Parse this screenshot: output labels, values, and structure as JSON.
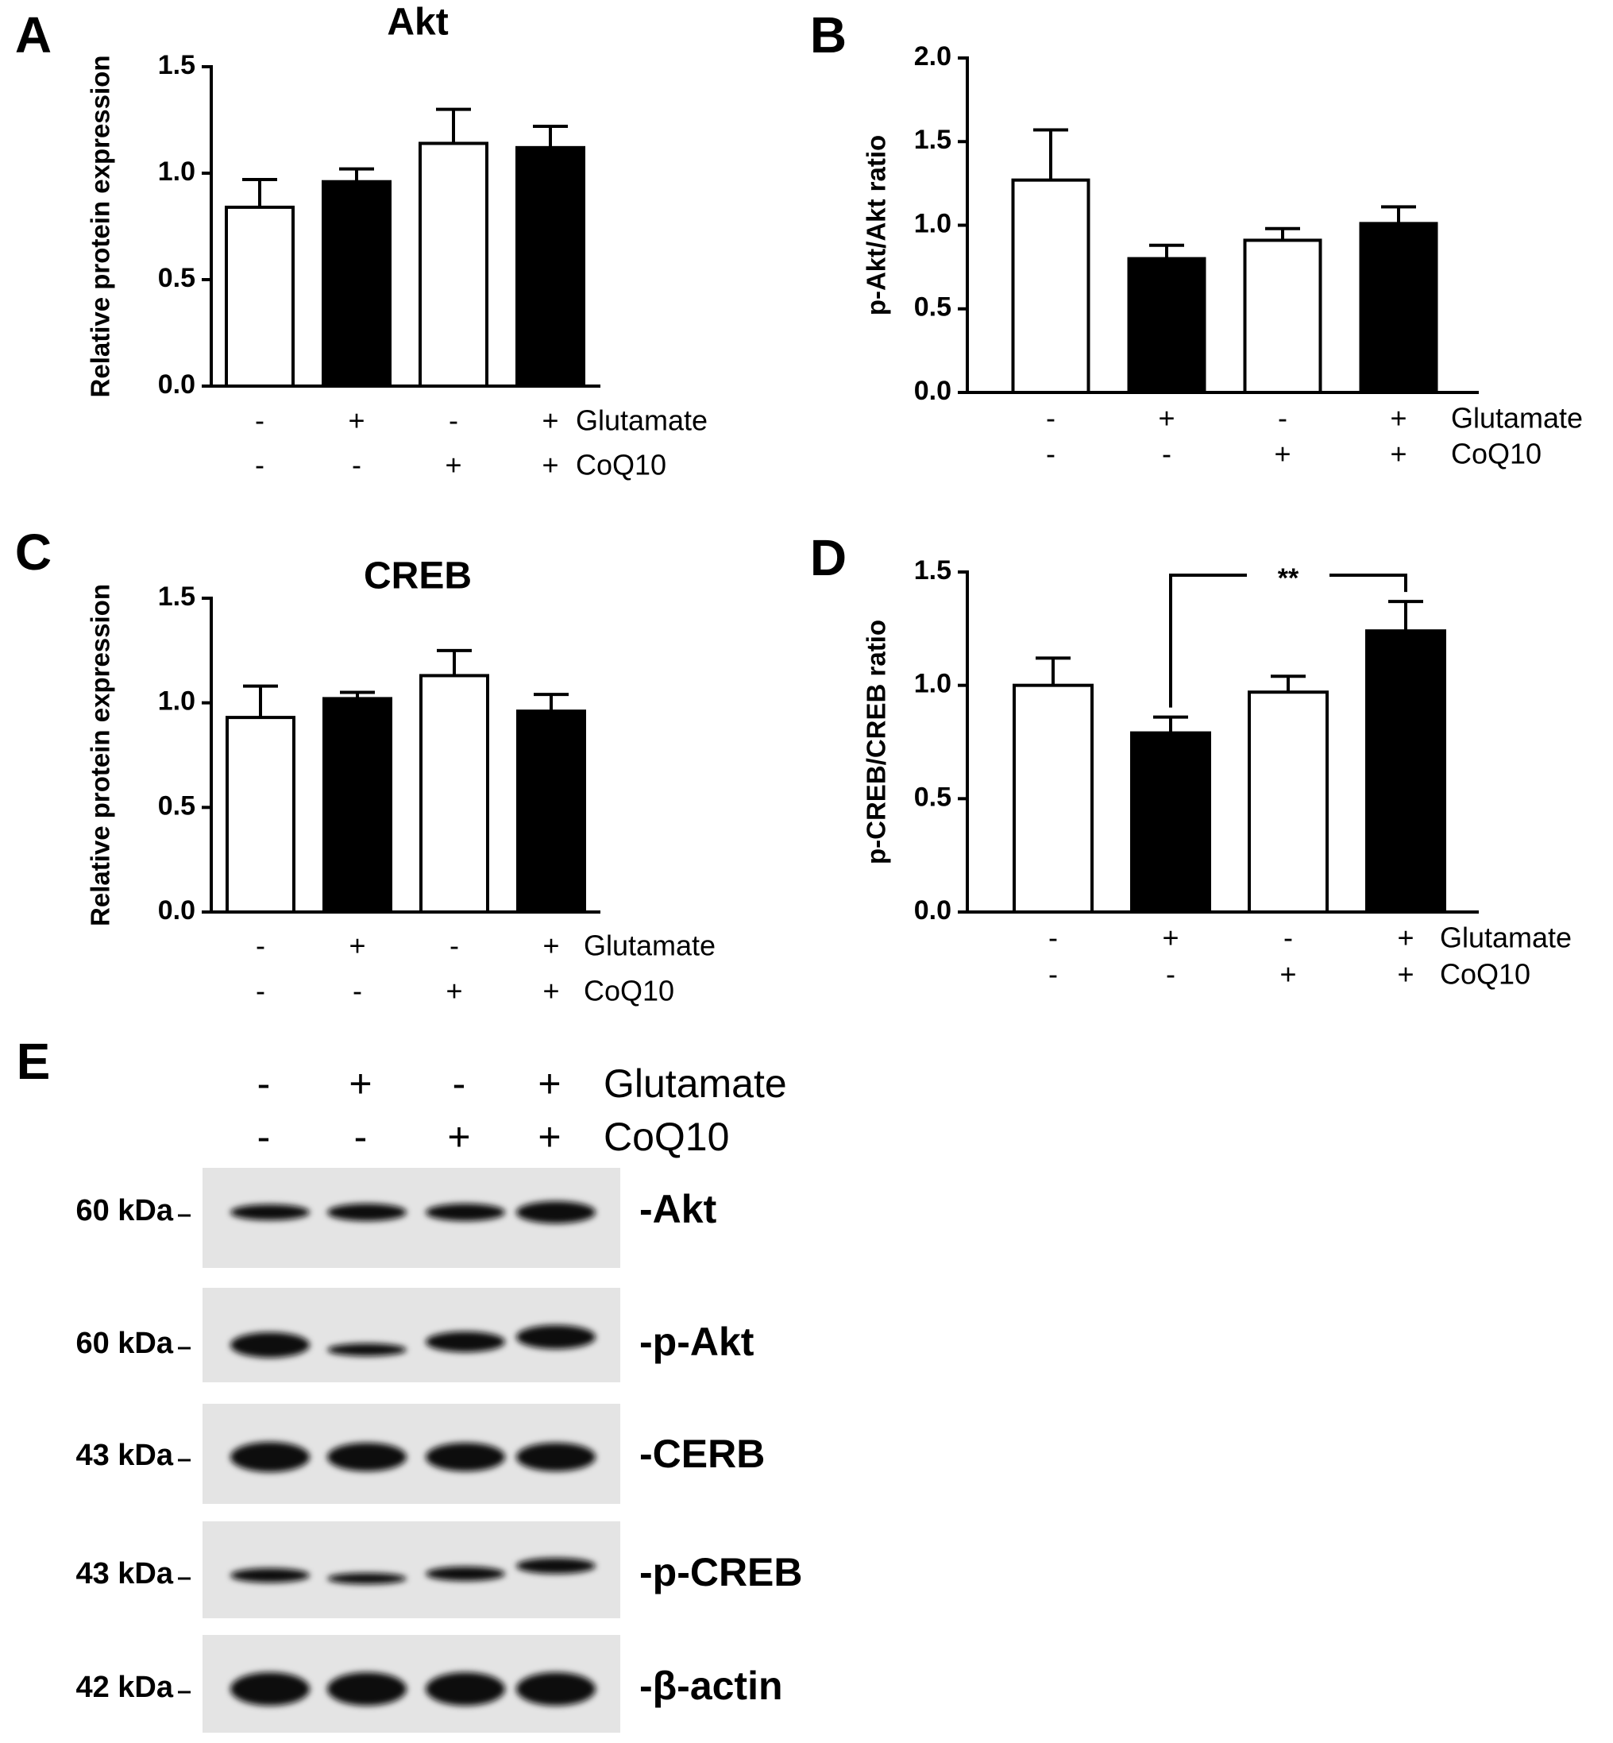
{
  "chart_data": [
    {
      "type": "bar",
      "panel_label": "A",
      "title": "Akt",
      "y_label": "Relative protein expression",
      "ylim": [
        0,
        1.5
      ],
      "yticks": [
        {
          "value": 0,
          "label": "0.0"
        },
        0.5,
        {
          "value": 1,
          "label": "1.0"
        },
        1.5
      ],
      "values": [
        0.84,
        0.96,
        1.14,
        1.12
      ],
      "errors": [
        0.13,
        0.06,
        0.16,
        0.1
      ],
      "colors": [
        "#ffffff",
        "#000000",
        "#ffffff",
        "#000000"
      ],
      "conditions": [
        {
          "name": "Glutamate",
          "signs": [
            "-",
            "+",
            "-",
            "+"
          ]
        },
        {
          "name": "CoQ10",
          "signs": [
            "-",
            "-",
            "+",
            "+"
          ]
        }
      ]
    },
    {
      "type": "bar",
      "panel_label": "B",
      "y_label": "p-Akt/Akt ratio",
      "ylim": [
        0,
        2
      ],
      "yticks": [
        {
          "value": 0,
          "label": "0.0"
        },
        0.5,
        {
          "value": 1,
          "label": "1.0"
        },
        1.5,
        {
          "value": 2,
          "label": "2.0"
        }
      ],
      "values": [
        1.27,
        0.8,
        0.91,
        1.01
      ],
      "errors": [
        0.3,
        0.08,
        0.07,
        0.1
      ],
      "colors": [
        "#ffffff",
        "#000000",
        "#ffffff",
        "#000000"
      ],
      "conditions": [
        {
          "name": "Glutamate",
          "signs": [
            "-",
            "+",
            "-",
            "+"
          ]
        },
        {
          "name": "CoQ10",
          "signs": [
            "-",
            "-",
            "+",
            "+"
          ]
        }
      ]
    },
    {
      "type": "bar",
      "panel_label": "C",
      "title": "CREB",
      "y_label": "Relative protein expression",
      "ylim": [
        0,
        1.5
      ],
      "yticks": [
        {
          "value": 0,
          "label": "0.0"
        },
        0.5,
        {
          "value": 1,
          "label": "1.0"
        },
        1.5
      ],
      "values": [
        0.93,
        1.02,
        1.13,
        0.96
      ],
      "errors": [
        0.15,
        0.03,
        0.12,
        0.08
      ],
      "colors": [
        "#ffffff",
        "#000000",
        "#ffffff",
        "#000000"
      ],
      "conditions": [
        {
          "name": "Glutamate",
          "signs": [
            "-",
            "+",
            "-",
            "+"
          ]
        },
        {
          "name": "CoQ10",
          "signs": [
            "-",
            "-",
            "+",
            "+"
          ]
        }
      ]
    },
    {
      "type": "bar",
      "panel_label": "D",
      "y_label": "p-CREB/CREB ratio",
      "ylim": [
        0,
        1.5
      ],
      "yticks": [
        {
          "value": 0,
          "label": "0.0"
        },
        0.5,
        {
          "value": 1,
          "label": "1.0"
        },
        1.5
      ],
      "values": [
        1.0,
        0.79,
        0.97,
        1.24
      ],
      "errors": [
        0.12,
        0.07,
        0.07,
        0.13
      ],
      "colors": [
        "#ffffff",
        "#000000",
        "#ffffff",
        "#000000"
      ],
      "annotation": "**",
      "conditions": [
        {
          "name": "Glutamate",
          "signs": [
            "-",
            "+",
            "-",
            "+"
          ]
        },
        {
          "name": "CoQ10",
          "signs": [
            "-",
            "-",
            "+",
            "+"
          ]
        }
      ]
    }
  ],
  "blot": {
    "panel_label": "E",
    "conditions": [
      {
        "name": "Glutamate",
        "signs": [
          "-",
          "+",
          "-",
          "+"
        ]
      },
      {
        "name": "CoQ10",
        "signs": [
          "-",
          "-",
          "+",
          "+"
        ]
      }
    ],
    "rows": [
      {
        "marker": "60 kDa",
        "label": "-Akt"
      },
      {
        "marker": "60 kDa",
        "label": "-p-Akt"
      },
      {
        "marker": "43 kDa",
        "label": "-CERB"
      },
      {
        "marker": "43 kDa",
        "label": "-p-CREB"
      },
      {
        "marker": "42 kDa",
        "label": "-β-actin"
      }
    ]
  }
}
